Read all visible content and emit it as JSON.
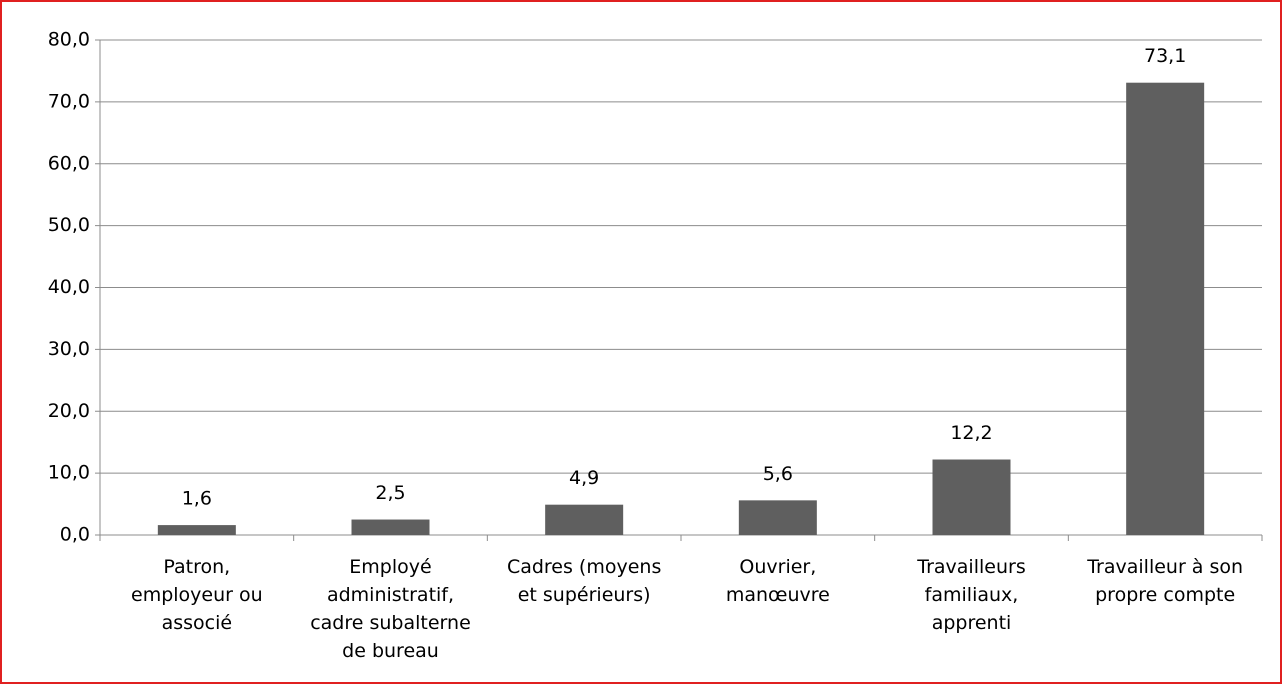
{
  "chart_data": {
    "type": "bar",
    "categories": [
      "Patron,\nemployeur ou\nassocié",
      "Employé\nadministratif,\ncadre subalterne\nde bureau",
      "Cadres (moyens\net supérieurs)",
      "Ouvrier,\nmanœuvre",
      "Travailleurs\nfamiliaux,\napprenti",
      "Travailleur à son\npropre compte"
    ],
    "values": [
      1.6,
      2.5,
      4.9,
      5.6,
      12.2,
      73.1
    ],
    "value_labels": [
      "1,6",
      "2,5",
      "4,9",
      "5,6",
      "12,2",
      "73,1"
    ],
    "color": "#5f5f5f",
    "ylim": [
      0,
      80
    ],
    "yticks": [
      {
        "value": 0,
        "label": "0,0"
      },
      {
        "value": 10,
        "label": "10,0"
      },
      {
        "value": 20,
        "label": "20,0"
      },
      {
        "value": 30,
        "label": "30,0"
      },
      {
        "value": 40,
        "label": "40,0"
      },
      {
        "value": 50,
        "label": "50,0"
      },
      {
        "value": 60,
        "label": "60,0"
      },
      {
        "value": 70,
        "label": "70,0"
      },
      {
        "value": 80,
        "label": "80,0"
      }
    ],
    "grid": true
  }
}
